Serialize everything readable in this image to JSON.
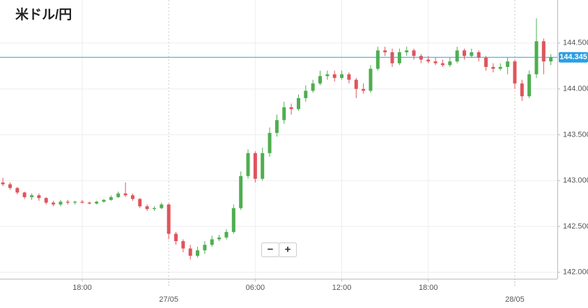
{
  "chart_data": {
    "type": "candlestick",
    "title": "米ドル/円",
    "x": [
      "26/05 12:30",
      "26/05 13:00",
      "26/05 13:30",
      "26/05 14:00",
      "26/05 14:30",
      "26/05 15:00",
      "26/05 15:30",
      "26/05 16:00",
      "26/05 16:30",
      "26/05 17:00",
      "26/05 17:30",
      "26/05 18:00",
      "26/05 18:30",
      "26/05 19:00",
      "26/05 19:30",
      "26/05 20:00",
      "26/05 20:30",
      "26/05 21:00",
      "26/05 21:30",
      "26/05 22:00",
      "26/05 22:30",
      "26/05 23:00",
      "26/05 23:30",
      "27/05 00:00",
      "27/05 00:30",
      "27/05 01:00",
      "27/05 01:30",
      "27/05 02:00",
      "27/05 02:30",
      "27/05 03:00",
      "27/05 03:30",
      "27/05 04:00",
      "27/05 04:30",
      "27/05 05:00",
      "27/05 05:30",
      "27/05 06:00",
      "27/05 06:30",
      "27/05 07:00",
      "27/05 07:30",
      "27/05 08:00",
      "27/05 08:30",
      "27/05 09:00",
      "27/05 09:30",
      "27/05 10:00",
      "27/05 10:30",
      "27/05 11:00",
      "27/05 11:30",
      "27/05 12:00",
      "27/05 12:30",
      "27/05 13:00",
      "27/05 13:30",
      "27/05 14:00",
      "27/05 14:30",
      "27/05 15:00",
      "27/05 15:30",
      "27/05 16:00",
      "27/05 16:30",
      "27/05 17:00",
      "27/05 17:30",
      "27/05 18:00",
      "27/05 18:30",
      "27/05 19:00",
      "27/05 19:30",
      "27/05 20:00",
      "27/05 20:30",
      "27/05 21:00",
      "27/05 21:30",
      "27/05 22:00",
      "27/05 22:30",
      "27/05 23:00",
      "27/05 23:30",
      "28/05 00:00",
      "28/05 00:30",
      "28/05 01:00",
      "28/05 01:30",
      "28/05 02:00",
      "28/05 02:30"
    ],
    "open": [
      142.98,
      142.96,
      142.92,
      142.87,
      142.82,
      142.84,
      142.81,
      142.76,
      142.74,
      142.77,
      142.76,
      142.77,
      142.76,
      142.75,
      142.77,
      142.79,
      142.82,
      142.86,
      142.84,
      142.8,
      142.72,
      142.69,
      142.7,
      142.74,
      142.42,
      142.34,
      142.26,
      142.18,
      142.24,
      142.3,
      142.36,
      142.38,
      142.44,
      142.7,
      143.05,
      143.3,
      143.02,
      143.3,
      143.52,
      143.66,
      143.8,
      143.78,
      143.9,
      143.98,
      144.06,
      144.14,
      144.16,
      144.12,
      144.16,
      144.1,
      144.0,
      143.98,
      144.22,
      144.42,
      144.4,
      144.28,
      144.4,
      144.42,
      144.36,
      144.32,
      144.3,
      144.28,
      144.26,
      144.3,
      144.42,
      144.36,
      144.4,
      144.34,
      144.24,
      144.22,
      144.24,
      144.3,
      144.06,
      143.92,
      144.16,
      144.52,
      144.3
    ],
    "high": [
      143.03,
      142.98,
      142.93,
      142.88,
      142.86,
      142.86,
      142.82,
      142.78,
      142.79,
      142.79,
      142.78,
      142.79,
      142.77,
      142.78,
      142.8,
      142.84,
      142.88,
      142.98,
      142.86,
      142.81,
      142.74,
      142.72,
      142.76,
      142.75,
      142.44,
      142.36,
      142.3,
      142.28,
      142.34,
      142.4,
      142.41,
      142.47,
      142.74,
      143.1,
      143.34,
      143.32,
      143.36,
      143.58,
      143.72,
      143.86,
      143.84,
      143.94,
      144.04,
      144.1,
      144.2,
      144.2,
      144.2,
      144.2,
      144.18,
      144.12,
      144.06,
      144.26,
      144.46,
      144.46,
      144.44,
      144.44,
      144.46,
      144.44,
      144.38,
      144.36,
      144.34,
      144.32,
      144.34,
      144.46,
      144.44,
      144.44,
      144.42,
      144.36,
      144.28,
      144.28,
      144.34,
      144.32,
      144.1,
      144.2,
      144.77,
      144.55,
      144.38
    ],
    "low": [
      142.94,
      142.9,
      142.85,
      142.8,
      142.79,
      142.78,
      142.74,
      142.72,
      142.72,
      142.74,
      142.74,
      142.75,
      142.74,
      142.74,
      142.76,
      142.78,
      142.81,
      142.82,
      142.78,
      142.7,
      142.67,
      142.67,
      142.69,
      142.36,
      142.3,
      142.22,
      142.14,
      142.16,
      142.2,
      142.28,
      142.34,
      142.36,
      142.42,
      142.68,
      143.02,
      142.98,
      143.0,
      143.26,
      143.48,
      143.62,
      143.72,
      143.76,
      143.86,
      143.96,
      144.04,
      144.1,
      144.08,
      144.1,
      144.06,
      143.9,
      143.95,
      143.96,
      144.2,
      144.36,
      144.24,
      144.26,
      144.36,
      144.32,
      144.28,
      144.28,
      144.26,
      144.24,
      144.24,
      144.28,
      144.32,
      144.34,
      144.3,
      144.2,
      144.18,
      144.2,
      144.16,
      144.0,
      143.87,
      143.9,
      144.12,
      144.16,
      144.26
    ],
    "close": [
      142.96,
      142.92,
      142.87,
      142.82,
      142.84,
      142.81,
      142.76,
      142.74,
      142.77,
      142.76,
      142.77,
      142.76,
      142.75,
      142.77,
      142.79,
      142.82,
      142.86,
      142.84,
      142.8,
      142.72,
      142.69,
      142.7,
      142.74,
      142.42,
      142.34,
      142.26,
      142.18,
      142.24,
      142.3,
      142.36,
      142.38,
      142.44,
      142.7,
      143.05,
      143.3,
      143.02,
      143.3,
      143.52,
      143.66,
      143.8,
      143.78,
      143.9,
      143.98,
      144.06,
      144.14,
      144.16,
      144.12,
      144.16,
      144.1,
      144.0,
      143.98,
      144.22,
      144.42,
      144.4,
      144.28,
      144.4,
      144.42,
      144.36,
      144.32,
      144.3,
      144.28,
      144.26,
      144.3,
      144.42,
      144.36,
      144.4,
      144.34,
      144.24,
      144.22,
      144.24,
      144.3,
      144.06,
      143.92,
      144.16,
      144.52,
      144.3,
      144.345
    ],
    "up_color": "#4fae4f",
    "down_color": "#e0545b",
    "xlim": [
      "26/05 12:18",
      "28/05 02:57"
    ],
    "xticks": [
      {
        "value": "26/05 18:00",
        "label": "18:00"
      },
      {
        "value": "27/05 00:00",
        "label": "27/05"
      },
      {
        "value": "27/05 06:00",
        "label": "06:00"
      },
      {
        "value": "27/05 12:00",
        "label": "12:00"
      },
      {
        "value": "27/05 18:00",
        "label": "18:00"
      },
      {
        "value": "28/05 00:00",
        "label": "28/05"
      }
    ],
    "ylim": [
      141.93,
      144.97
    ],
    "yticks": [
      {
        "value": 142,
        "label": "142.000"
      },
      {
        "value": 142.5,
        "label": "142.500"
      },
      {
        "value": 143,
        "label": "143.000"
      },
      {
        "value": 143.5,
        "label": "143.500"
      },
      {
        "value": 144,
        "label": "144.000"
      },
      {
        "value": 144.5,
        "label": "144.500"
      }
    ],
    "grid": true,
    "current_price": {
      "value": 144.345,
      "label": "144.345",
      "color": "#2d9ee0"
    }
  },
  "zoom_controls": {
    "out": "−",
    "in": "+"
  }
}
